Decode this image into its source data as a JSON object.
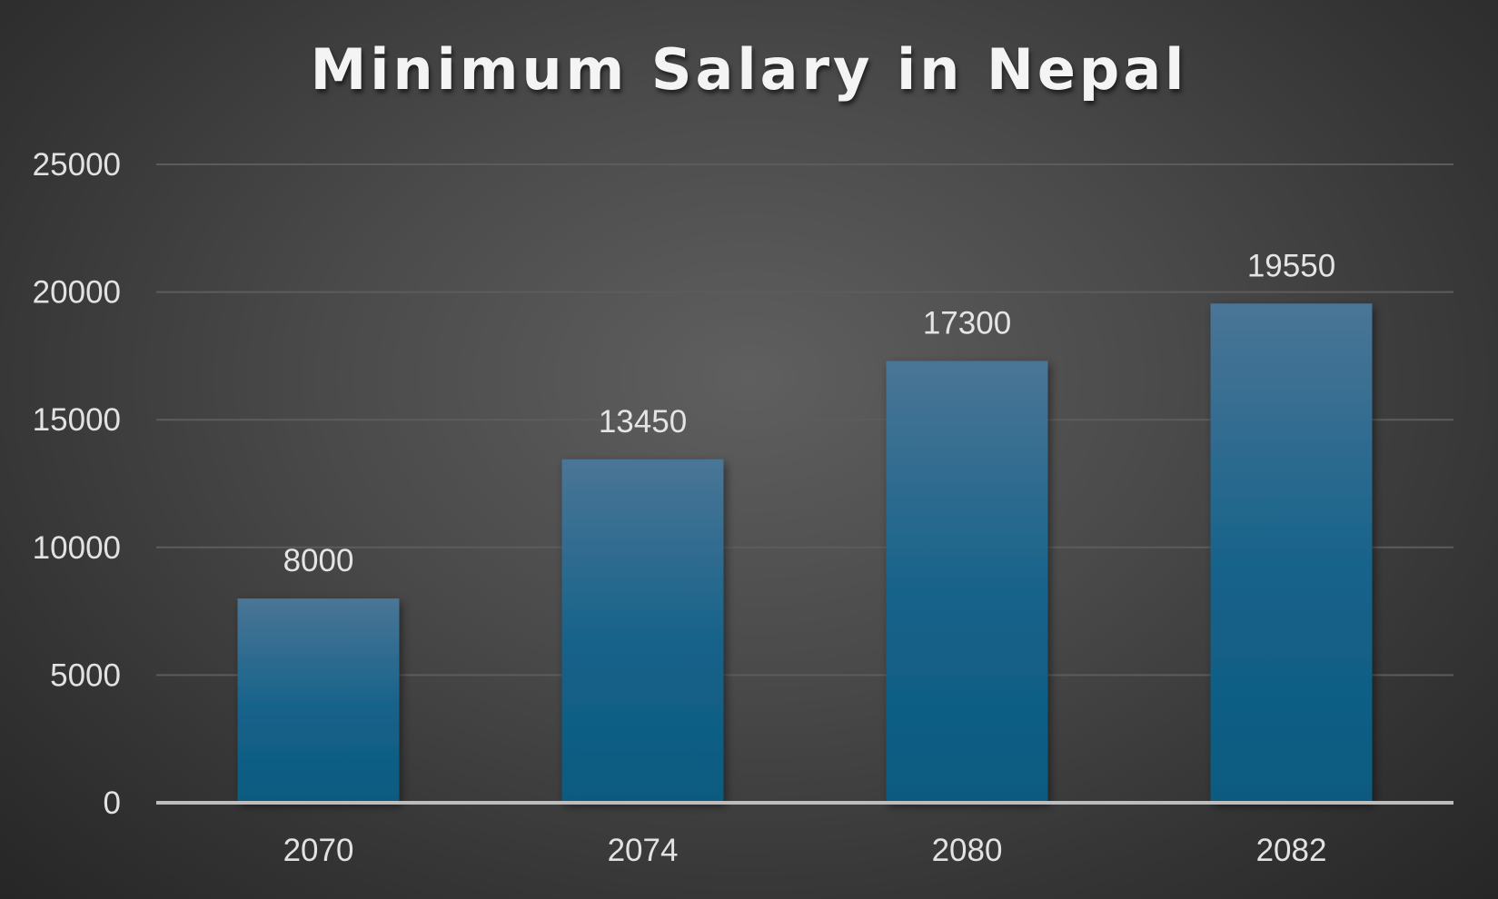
{
  "chart_data": {
    "type": "bar",
    "title": "Minimum Salary in Nepal",
    "categories": [
      "2070",
      "2074",
      "2080",
      "2082"
    ],
    "values": [
      8000,
      13450,
      17300,
      19550
    ],
    "data_labels": [
      "8000",
      "13450",
      "17300",
      "19550"
    ],
    "ylim": [
      0,
      25000
    ],
    "yticks": [
      0,
      5000,
      10000,
      15000,
      20000,
      25000
    ],
    "ytick_labels": [
      "0",
      "5000",
      "10000",
      "15000",
      "20000",
      "25000"
    ],
    "grid": true,
    "legend": "none",
    "colors": {
      "bar_top": "#4a7596",
      "bar_mid": "#15628a",
      "bar_bottom": "#0c5a80",
      "gridline": "#5c5c5c",
      "axis": "#bdbdbd"
    }
  }
}
